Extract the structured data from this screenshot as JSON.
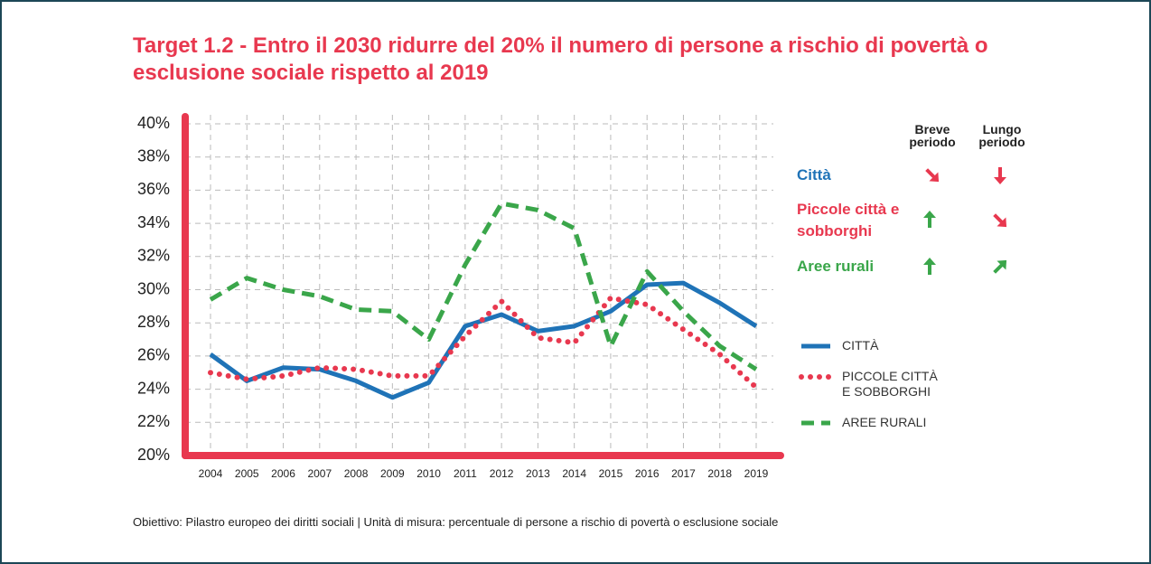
{
  "chart_data": {
    "type": "line",
    "title": "Target 1.2 - Entro il 2030 ridurre del 20% il numero di persone a rischio di povertà o esclusione sociale rispetto al 2019",
    "x": [
      2004,
      2005,
      2006,
      2007,
      2008,
      2009,
      2010,
      2011,
      2012,
      2013,
      2014,
      2015,
      2016,
      2017,
      2018,
      2019
    ],
    "series": [
      {
        "name": "CITTÀ",
        "color": "#1f73b7",
        "style": "solid",
        "values": [
          26.1,
          24.5,
          25.3,
          25.2,
          24.5,
          23.5,
          24.4,
          27.8,
          28.5,
          27.5,
          27.8,
          28.7,
          30.3,
          30.4,
          29.2,
          27.8
        ]
      },
      {
        "name": "PICCOLE CITTÀ E SOBBORGHI",
        "color": "#e8384f",
        "style": "dotted",
        "values": [
          25.0,
          24.6,
          24.8,
          25.3,
          25.2,
          24.8,
          24.8,
          27.2,
          29.3,
          27.1,
          26.8,
          29.5,
          29.1,
          27.6,
          26.1,
          24.1
        ]
      },
      {
        "name": "AREE RURALI",
        "color": "#3aa64a",
        "style": "dashed",
        "values": [
          29.4,
          30.7,
          30.0,
          29.6,
          28.8,
          28.7,
          27.0,
          31.5,
          35.2,
          34.8,
          33.7,
          26.6,
          31.1,
          28.7,
          26.6,
          25.2
        ]
      }
    ],
    "ylim": [
      20,
      40
    ],
    "yticks": [
      {
        "value": 20,
        "label": "20%"
      },
      {
        "value": 22,
        "label": "22%"
      },
      {
        "value": 24,
        "label": "24%"
      },
      {
        "value": 26,
        "label": "26%"
      },
      {
        "value": 28,
        "label": "28%"
      },
      {
        "value": 30,
        "label": "30%"
      },
      {
        "value": 32,
        "label": "32%"
      },
      {
        "value": 34,
        "label": "34%"
      },
      {
        "value": 36,
        "label": "36%"
      },
      {
        "value": 38,
        "label": "38%"
      },
      {
        "value": 40,
        "label": "40%"
      }
    ],
    "grid": true,
    "legend": "right"
  },
  "trend_table": {
    "headers": [
      "Breve periodo",
      "Lungo periodo"
    ],
    "rows": [
      "Città",
      "Piccole città e sobborghi",
      "Aree rurali"
    ]
  },
  "footnote": "Obiettivo: Pilastro europeo dei diritti sociali | Unità di misura: percentuale di persone a rischio di povertà o esclusione sociale"
}
